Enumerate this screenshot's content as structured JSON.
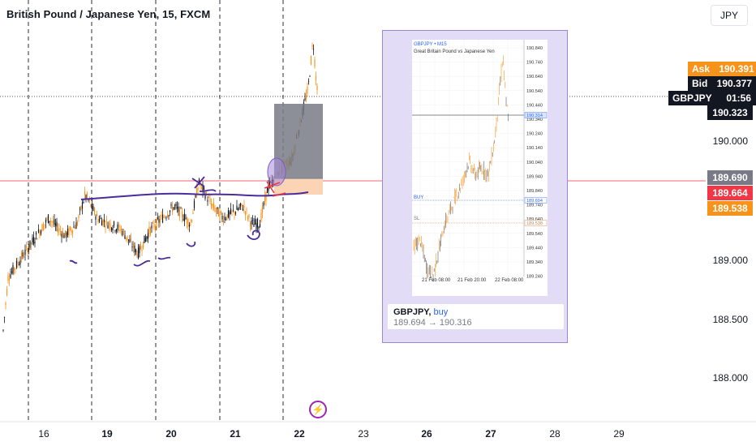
{
  "header": {
    "title": "British Pound / Japanese Yen, 15, FXCM",
    "currency_button": "JPY"
  },
  "price_axis": {
    "labels": [
      "190.000",
      "189.000",
      "188.500",
      "188.000"
    ]
  },
  "price_tags": {
    "ask_label": "Ask",
    "ask_value": "190.391",
    "bid_label": "Bid",
    "bid_value": "190.377",
    "symbol_label": "GBPJPY",
    "countdown": "01:56",
    "last_value": "190.323",
    "level_1": "189.690",
    "level_2": "189.664",
    "level_3": "189.538"
  },
  "time_axis": {
    "labels": [
      "16",
      "19",
      "20",
      "21",
      "22",
      "23",
      "26",
      "27",
      "28",
      "29"
    ],
    "bold_labels": [
      "19",
      "20",
      "21",
      "22",
      "26",
      "27"
    ]
  },
  "idea_panel": {
    "mini_chart": {
      "header": "GBPJPY • M15",
      "subtitle": "Great Britain Pound vs Japanese Yen",
      "y_labels": [
        "190.840",
        "190.740",
        "190.640",
        "190.540",
        "190.440",
        "190.340",
        "190.240",
        "190.140",
        "190.040",
        "189.940",
        "189.840",
        "189.740",
        "189.640",
        "189.540",
        "189.440",
        "189.340",
        "189.240"
      ],
      "price_boxes": [
        "190.314",
        "189.694",
        "189.538"
      ],
      "line_labels": [
        "BUY",
        "SL"
      ],
      "x_labels": [
        "21 Feb 08:00",
        "21 Feb 20:00",
        "22 Feb 08:00"
      ]
    },
    "caption": {
      "symbol": "GBPJPY,",
      "direction": " buy",
      "range": "189.694 → 190.316"
    }
  },
  "colors": {
    "ask": "#f7931a",
    "bid": "#131722",
    "level_red": "#f23645",
    "level_gray": "#787b86",
    "panel_bg": "#e3dcf6",
    "annotation": "#4a2c9b"
  },
  "icons": {
    "lightning": "lightning-icon"
  }
}
